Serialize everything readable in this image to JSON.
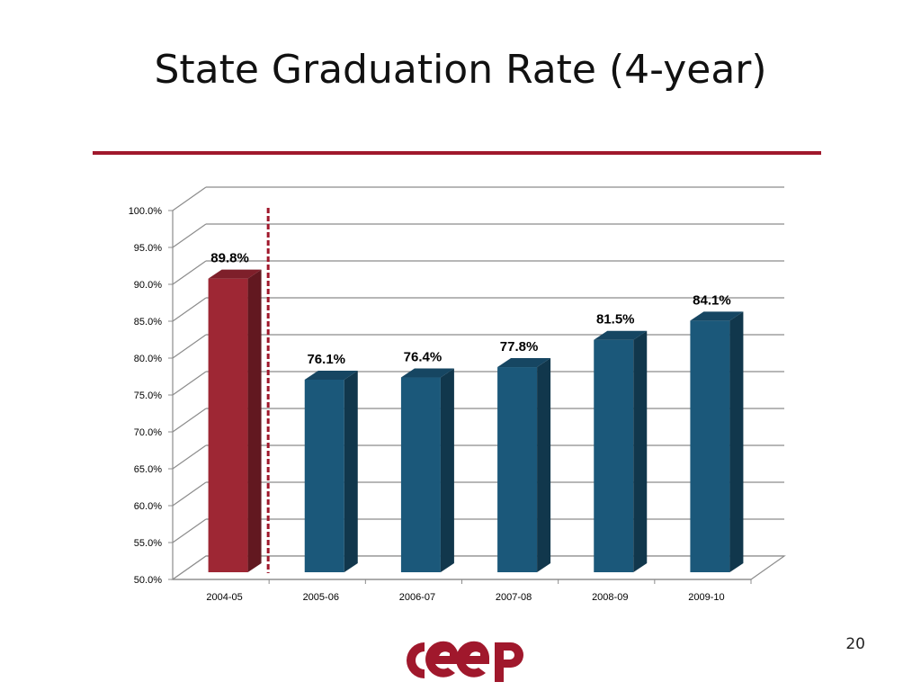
{
  "slide": {
    "title": "State Graduation Rate (4-year)",
    "page_number": "20",
    "logo_text": "CEEP",
    "accent_color": "#a0182c"
  },
  "chart_data": {
    "type": "bar",
    "title": "",
    "xlabel": "",
    "ylabel": "",
    "categories": [
      "2004-05",
      "2005-06",
      "2006-07",
      "2007-08",
      "2008-09",
      "2009-10"
    ],
    "values": [
      89.8,
      76.1,
      76.4,
      77.8,
      81.5,
      84.1
    ],
    "data_labels": [
      "89.8%",
      "76.1%",
      "76.4%",
      "77.8%",
      "81.5%",
      "84.1%"
    ],
    "ylim": [
      50,
      100
    ],
    "yticks": [
      50,
      55,
      60,
      65,
      70,
      75,
      80,
      85,
      90,
      95,
      100
    ],
    "ytick_labels": [
      "50.0%",
      "55.0%",
      "60.0%",
      "65.0%",
      "70.0%",
      "75.0%",
      "80.0%",
      "85.0%",
      "90.0%",
      "95.0%",
      "100.0%"
    ],
    "grid": true,
    "style": "3d-column",
    "bar_colors": [
      "#9e2734",
      "#1b587a",
      "#1b587a",
      "#1b587a",
      "#1b587a",
      "#1b587a"
    ],
    "separator_after_category": "2004-05",
    "separator_color": "#a0182c"
  }
}
